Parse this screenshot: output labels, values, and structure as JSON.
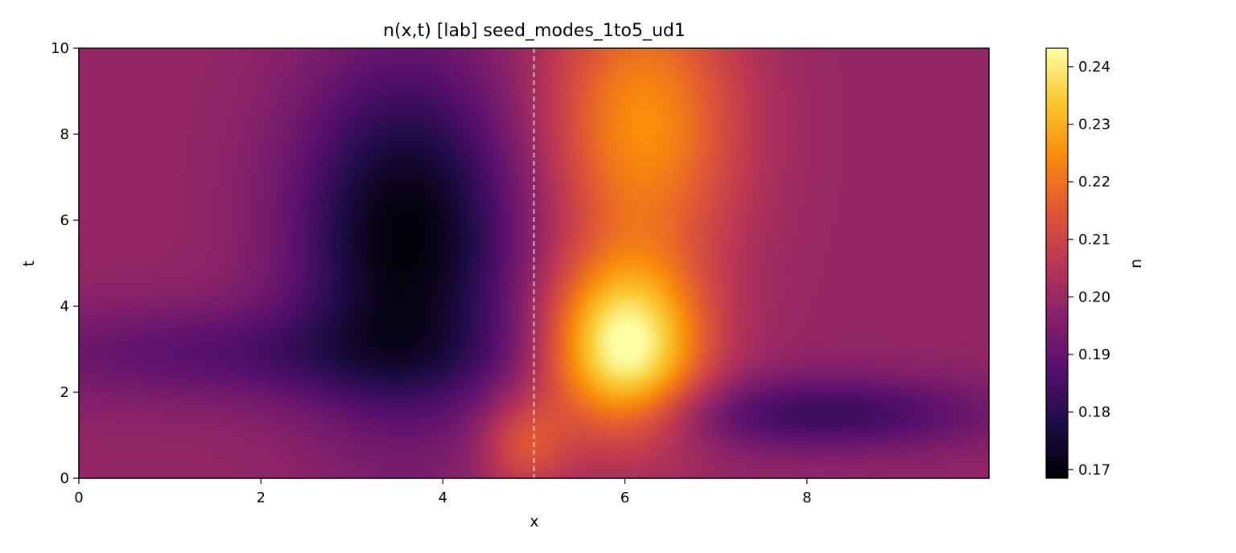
{
  "chart_data": {
    "type": "heatmap",
    "title": "n(x,t)  [lab]  seed_modes_1to5_ud1",
    "xlabel": "x",
    "ylabel": "t",
    "xlim": [
      0,
      10
    ],
    "ylim": [
      0,
      10
    ],
    "x_ticks": [
      0,
      2,
      4,
      6,
      8
    ],
    "y_ticks": [
      0,
      2,
      4,
      6,
      8,
      10
    ],
    "colormap": "inferno",
    "colorbar": {
      "label": "n",
      "range": [
        0.1685,
        0.2432
      ],
      "ticks": [
        0.17,
        0.18,
        0.19,
        0.2,
        0.21,
        0.22,
        0.23,
        0.24
      ],
      "tick_labels": [
        "0.17",
        "0.18",
        "0.19",
        "0.20",
        "0.21",
        "0.22",
        "0.23",
        "0.24"
      ]
    },
    "reference_line": {
      "x": 5,
      "style": "dashed",
      "color": "#ffffff"
    },
    "field": {
      "background": 0.199,
      "features": [
        {
          "kind": "trough",
          "x": 3.6,
          "t": 5.6,
          "sx": 0.85,
          "st": 2.8,
          "amp": -0.03
        },
        {
          "kind": "peak",
          "x": 6.0,
          "t": 3.0,
          "sx": 0.6,
          "st": 1.4,
          "amp": 0.044
        },
        {
          "kind": "ridge",
          "x": 6.2,
          "t": 8.2,
          "sx": 0.75,
          "st": 2.5,
          "amp": 0.026
        },
        {
          "kind": "trough-band",
          "x": 1.8,
          "t": 2.9,
          "sx": 2.0,
          "st": 0.8,
          "amp": -0.011
        },
        {
          "kind": "trough-band",
          "x": 8.2,
          "t": 1.5,
          "sx": 1.3,
          "st": 0.6,
          "amp": -0.016
        },
        {
          "kind": "peak",
          "x": 4.9,
          "t": 0.8,
          "sx": 0.35,
          "st": 0.8,
          "amp": 0.015
        }
      ],
      "samples": [
        {
          "x": 3.6,
          "t": 5.5,
          "n": 0.169
        },
        {
          "x": 6.0,
          "t": 3.0,
          "n": 0.242
        },
        {
          "x": 6.0,
          "t": 9.5,
          "n": 0.228
        },
        {
          "x": 0.5,
          "t": 7.0,
          "n": 0.199
        },
        {
          "x": 8.5,
          "t": 1.5,
          "n": 0.184
        },
        {
          "x": 9.5,
          "t": 5.0,
          "n": 0.201
        }
      ]
    }
  }
}
